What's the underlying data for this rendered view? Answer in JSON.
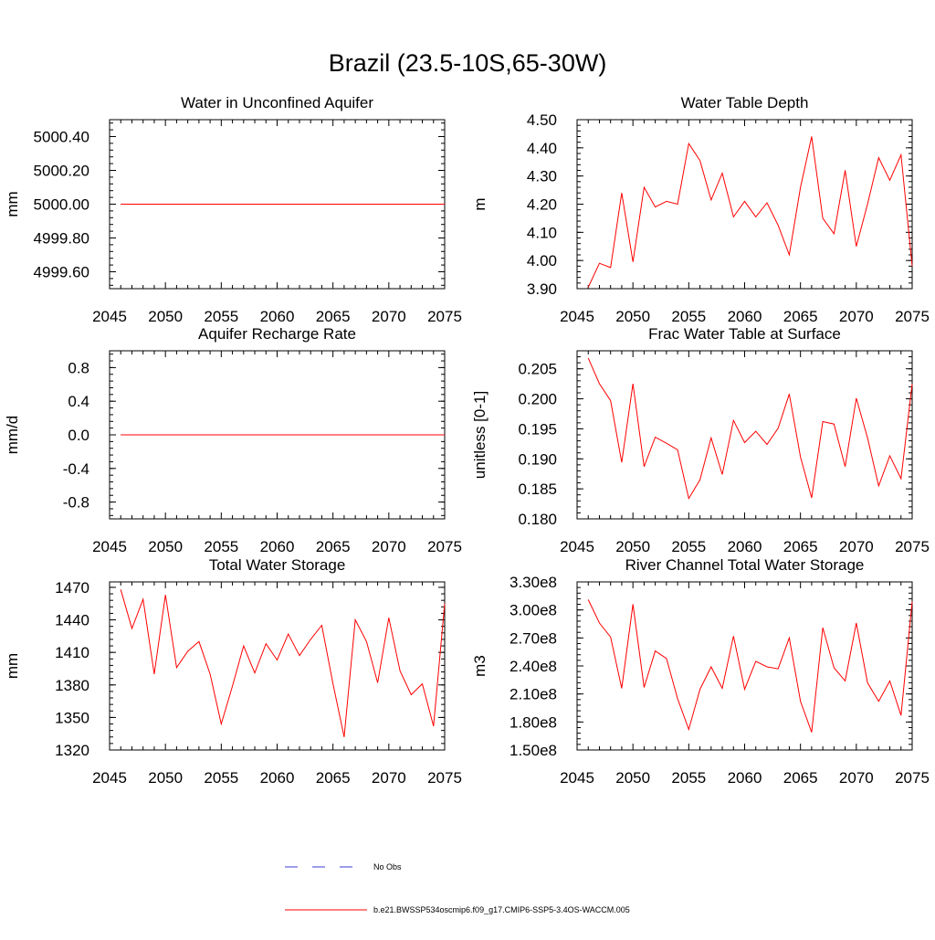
{
  "page": {
    "title": "Brazil (23.5-10S,65-30W)"
  },
  "legend": {
    "obs_label": "No Obs",
    "model_label": "b.e21.BWSSP534oscmip6.f09_g17.CMIP6-SSP5-3.4OS-WACCM.005",
    "obs_color": "#3b3bd6",
    "model_color": "#ff0000"
  },
  "chart_data": [
    {
      "type": "line",
      "title": "Water in Unconfined Aquifer",
      "ylabel": "mm",
      "xlim": [
        2045,
        2075
      ],
      "ylim": [
        4999.5,
        5000.5
      ],
      "xticks": [
        2045,
        2050,
        2055,
        2060,
        2065,
        2070,
        2075
      ],
      "yticks": [
        4999.6,
        4999.8,
        5000.0,
        5000.2,
        5000.4
      ],
      "ytick_labels": [
        "4999.60",
        "4999.80",
        "5000.00",
        "5000.20",
        "5000.40"
      ],
      "x": [
        2046,
        2047,
        2048,
        2049,
        2050,
        2051,
        2052,
        2053,
        2054,
        2055,
        2056,
        2057,
        2058,
        2059,
        2060,
        2061,
        2062,
        2063,
        2064,
        2065,
        2066,
        2067,
        2068,
        2069,
        2070,
        2071,
        2072,
        2073,
        2074,
        2075
      ],
      "series": [
        {
          "values": [
            5000,
            5000,
            5000,
            5000,
            5000,
            5000,
            5000,
            5000,
            5000,
            5000,
            5000,
            5000,
            5000,
            5000,
            5000,
            5000,
            5000,
            5000,
            5000,
            5000,
            5000,
            5000,
            5000,
            5000,
            5000,
            5000,
            5000,
            5000,
            5000,
            5000
          ]
        }
      ]
    },
    {
      "type": "line",
      "title": "Water Table Depth",
      "ylabel": "m",
      "xlim": [
        2045,
        2075
      ],
      "ylim": [
        3.9,
        4.5
      ],
      "xticks": [
        2045,
        2050,
        2055,
        2060,
        2065,
        2070,
        2075
      ],
      "yticks": [
        3.9,
        4.0,
        4.1,
        4.2,
        4.3,
        4.4,
        4.5
      ],
      "ytick_labels": [
        "3.90",
        "4.00",
        "4.10",
        "4.20",
        "4.30",
        "4.40",
        "4.50"
      ],
      "x": [
        2046,
        2047,
        2048,
        2049,
        2050,
        2051,
        2052,
        2053,
        2054,
        2055,
        2056,
        2057,
        2058,
        2059,
        2060,
        2061,
        2062,
        2063,
        2064,
        2065,
        2066,
        2067,
        2068,
        2069,
        2070,
        2071,
        2072,
        2073,
        2074,
        2075
      ],
      "series": [
        {
          "values": [
            3.905,
            3.99,
            3.975,
            4.24,
            3.995,
            4.26,
            4.19,
            4.21,
            4.2,
            4.415,
            4.355,
            4.215,
            4.31,
            4.155,
            4.21,
            4.155,
            4.205,
            4.125,
            4.02,
            4.26,
            4.44,
            4.15,
            4.095,
            4.32,
            4.05,
            4.2,
            4.365,
            4.285,
            4.375,
            3.98
          ]
        }
      ]
    },
    {
      "type": "line",
      "title": "Aquifer Recharge Rate",
      "ylabel": "mm/d",
      "xlim": [
        2045,
        2075
      ],
      "ylim": [
        -1.0,
        1.0
      ],
      "xticks": [
        2045,
        2050,
        2055,
        2060,
        2065,
        2070,
        2075
      ],
      "yticks": [
        -0.8,
        -0.4,
        0.0,
        0.4,
        0.8
      ],
      "ytick_labels": [
        "-0.8",
        "-0.4",
        "0.0",
        "0.4",
        "0.8"
      ],
      "x": [
        2046,
        2047,
        2048,
        2049,
        2050,
        2051,
        2052,
        2053,
        2054,
        2055,
        2056,
        2057,
        2058,
        2059,
        2060,
        2061,
        2062,
        2063,
        2064,
        2065,
        2066,
        2067,
        2068,
        2069,
        2070,
        2071,
        2072,
        2073,
        2074,
        2075
      ],
      "series": [
        {
          "values": [
            0,
            0,
            0,
            0,
            0,
            0,
            0,
            0,
            0,
            0,
            0,
            0,
            0,
            0,
            0,
            0,
            0,
            0,
            0,
            0,
            0,
            0,
            0,
            0,
            0,
            0,
            0,
            0,
            0,
            0
          ]
        }
      ]
    },
    {
      "type": "line",
      "title": "Frac Water Table at Surface",
      "ylabel": "unitless [0-1]",
      "xlim": [
        2045,
        2075
      ],
      "ylim": [
        0.18,
        0.208
      ],
      "xticks": [
        2045,
        2050,
        2055,
        2060,
        2065,
        2070,
        2075
      ],
      "yticks": [
        0.18,
        0.185,
        0.19,
        0.195,
        0.2,
        0.205
      ],
      "ytick_labels": [
        "0.180",
        "0.185",
        "0.190",
        "0.195",
        "0.200",
        "0.205"
      ],
      "x": [
        2046,
        2047,
        2048,
        2049,
        2050,
        2051,
        2052,
        2053,
        2054,
        2055,
        2056,
        2057,
        2058,
        2059,
        2060,
        2061,
        2062,
        2063,
        2064,
        2065,
        2066,
        2067,
        2068,
        2069,
        2070,
        2071,
        2072,
        2073,
        2074,
        2075
      ],
      "series": [
        {
          "values": [
            0.2068,
            0.2025,
            0.1997,
            0.1894,
            0.2025,
            0.1887,
            0.1936,
            0.1926,
            0.1915,
            0.1834,
            0.1865,
            0.1935,
            0.1874,
            0.1964,
            0.1927,
            0.1946,
            0.1924,
            0.1951,
            0.2008,
            0.1903,
            0.1835,
            0.1962,
            0.1958,
            0.1887,
            0.2001,
            0.1935,
            0.1855,
            0.1905,
            0.1867,
            0.2025
          ]
        }
      ]
    },
    {
      "type": "line",
      "title": "Total Water Storage",
      "ylabel": "mm",
      "xlim": [
        2045,
        2075
      ],
      "ylim": [
        1320,
        1475
      ],
      "xticks": [
        2045,
        2050,
        2055,
        2060,
        2065,
        2070,
        2075
      ],
      "yticks": [
        1320,
        1350,
        1380,
        1410,
        1440,
        1470
      ],
      "ytick_labels": [
        "1320",
        "1350",
        "1380",
        "1410",
        "1440",
        "1470"
      ],
      "x": [
        2046,
        2047,
        2048,
        2049,
        2050,
        2051,
        2052,
        2053,
        2054,
        2055,
        2056,
        2057,
        2058,
        2059,
        2060,
        2061,
        2062,
        2063,
        2064,
        2065,
        2066,
        2067,
        2068,
        2069,
        2070,
        2071,
        2072,
        2073,
        2074,
        2075
      ],
      "series": [
        {
          "values": [
            1468,
            1432,
            1459,
            1390,
            1463,
            1396,
            1411,
            1420,
            1390,
            1344,
            1379,
            1416,
            1391,
            1418,
            1403,
            1427,
            1407,
            1422,
            1435,
            1381,
            1332,
            1440,
            1420,
            1382,
            1442,
            1393,
            1371,
            1381,
            1342,
            1455
          ]
        }
      ]
    },
    {
      "type": "line",
      "title": "River Channel Total Water Storage",
      "ylabel": "m3",
      "xlim": [
        2045,
        2075
      ],
      "ylim": [
        150000000,
        330000000
      ],
      "xticks": [
        2045,
        2050,
        2055,
        2060,
        2065,
        2070,
        2075
      ],
      "yticks": [
        150000000,
        180000000,
        210000000,
        240000000,
        270000000,
        300000000,
        330000000
      ],
      "ytick_labels": [
        "1.50e8",
        "1.80e8",
        "2.10e8",
        "2.40e8",
        "2.70e8",
        "3.00e8",
        "3.30e8"
      ],
      "x": [
        2046,
        2047,
        2048,
        2049,
        2050,
        2051,
        2052,
        2053,
        2054,
        2055,
        2056,
        2057,
        2058,
        2059,
        2060,
        2061,
        2062,
        2063,
        2064,
        2065,
        2066,
        2067,
        2068,
        2069,
        2070,
        2071,
        2072,
        2073,
        2074,
        2075
      ],
      "series": [
        {
          "values": [
            311000000,
            286000000,
            271000000,
            216000000,
            306000000,
            217000000,
            256000000,
            248000000,
            205000000,
            172000000,
            215000000,
            239000000,
            216000000,
            272000000,
            215000000,
            245000000,
            239000000,
            237000000,
            270000000,
            202000000,
            169000000,
            281000000,
            238000000,
            224000000,
            286000000,
            222000000,
            202000000,
            224000000,
            187000000,
            309000000
          ]
        }
      ]
    }
  ]
}
